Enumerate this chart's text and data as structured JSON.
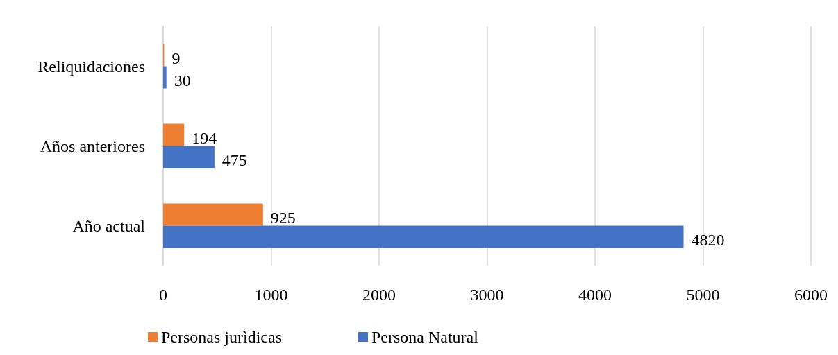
{
  "chart_data": {
    "type": "bar",
    "orientation": "horizontal",
    "categories": [
      "Reliquidaciones",
      "Años anteriores",
      "Año actual"
    ],
    "series": [
      {
        "name": "Personas jurìdicas",
        "color": "#ed7d31",
        "values": [
          9,
          194,
          925
        ]
      },
      {
        "name": "Persona Natural",
        "color": "#4472c4",
        "values": [
          30,
          475,
          4820
        ]
      }
    ],
    "xlim": [
      0,
      6000
    ],
    "xticks": [
      0,
      1000,
      2000,
      3000,
      4000,
      5000,
      6000
    ],
    "grid": "x",
    "legend": "bottom",
    "data_labels": true
  }
}
